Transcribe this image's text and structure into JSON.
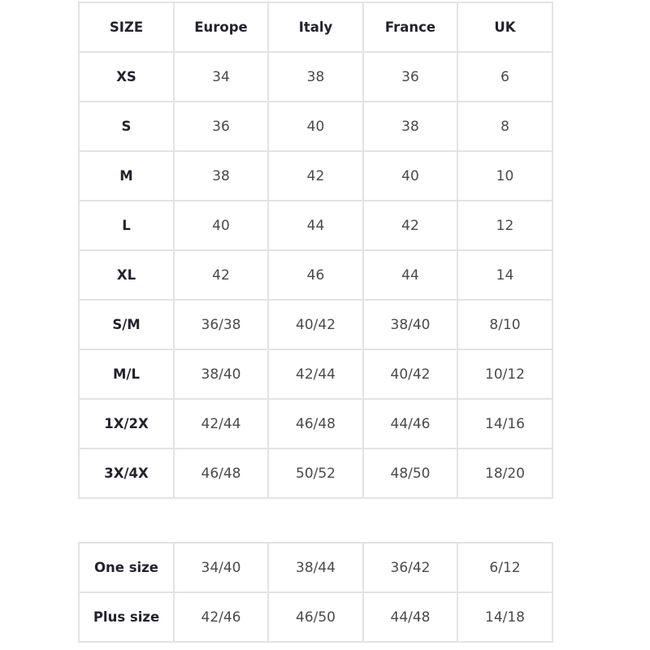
{
  "main_table": {
    "headers": [
      "SIZE",
      "Europe",
      "Italy",
      "France",
      "UK"
    ],
    "rows": [
      [
        "XS",
        "34",
        "38",
        "36",
        "6"
      ],
      [
        "S",
        "36",
        "40",
        "38",
        "8"
      ],
      [
        "M",
        "38",
        "42",
        "40",
        "10"
      ],
      [
        "L",
        "40",
        "44",
        "42",
        "12"
      ],
      [
        "XL",
        "42",
        "46",
        "44",
        "14"
      ],
      [
        "S/M",
        "36/38",
        "40/42",
        "38/40",
        "8/10"
      ],
      [
        "M/L",
        "38/40",
        "42/44",
        "40/42",
        "10/12"
      ],
      [
        "1X/2X",
        "42/44",
        "46/48",
        "44/46",
        "14/16"
      ],
      [
        "3X/4X",
        "46/48",
        "50/52",
        "48/50",
        "18/20"
      ]
    ]
  },
  "extra_table": {
    "rows": [
      [
        "One size",
        "34/40",
        "38/44",
        "36/42",
        "6/12"
      ],
      [
        "Plus size",
        "42/46",
        "46/50",
        "44/48",
        "14/18"
      ]
    ]
  },
  "colors": {
    "header_text": "#23232f",
    "cell_text": "#4a4a4a",
    "border": "#e3e3e3"
  }
}
